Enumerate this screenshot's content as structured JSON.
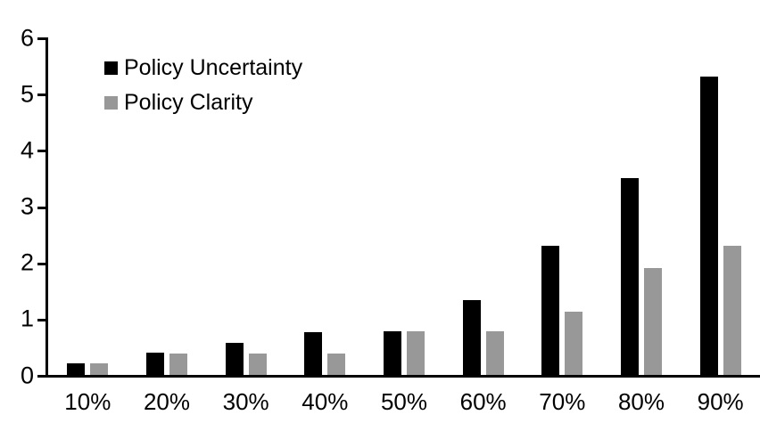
{
  "chart_data": {
    "type": "bar",
    "title": "",
    "xlabel": "",
    "ylabel": "",
    "categories": [
      "10%",
      "20%",
      "30%",
      "40%",
      "50%",
      "60%",
      "70%",
      "80%",
      "90%"
    ],
    "series": [
      {
        "name": "Policy Uncertainty",
        "color": "#000000",
        "values": [
          0.2,
          0.4,
          0.57,
          0.76,
          0.78,
          1.33,
          2.3,
          3.5,
          5.3
        ]
      },
      {
        "name": "Policy Clarity",
        "color": "#989898",
        "values": [
          0.2,
          0.38,
          0.38,
          0.38,
          0.77,
          0.77,
          1.13,
          1.9,
          2.3
        ]
      }
    ],
    "ylim": [
      0,
      6
    ],
    "yticks": [
      0,
      1,
      2,
      3,
      4,
      5,
      6
    ],
    "grid": false,
    "legend_position": "top-left-inside",
    "axis_color": "#000000",
    "background_color": "#ffffff"
  }
}
